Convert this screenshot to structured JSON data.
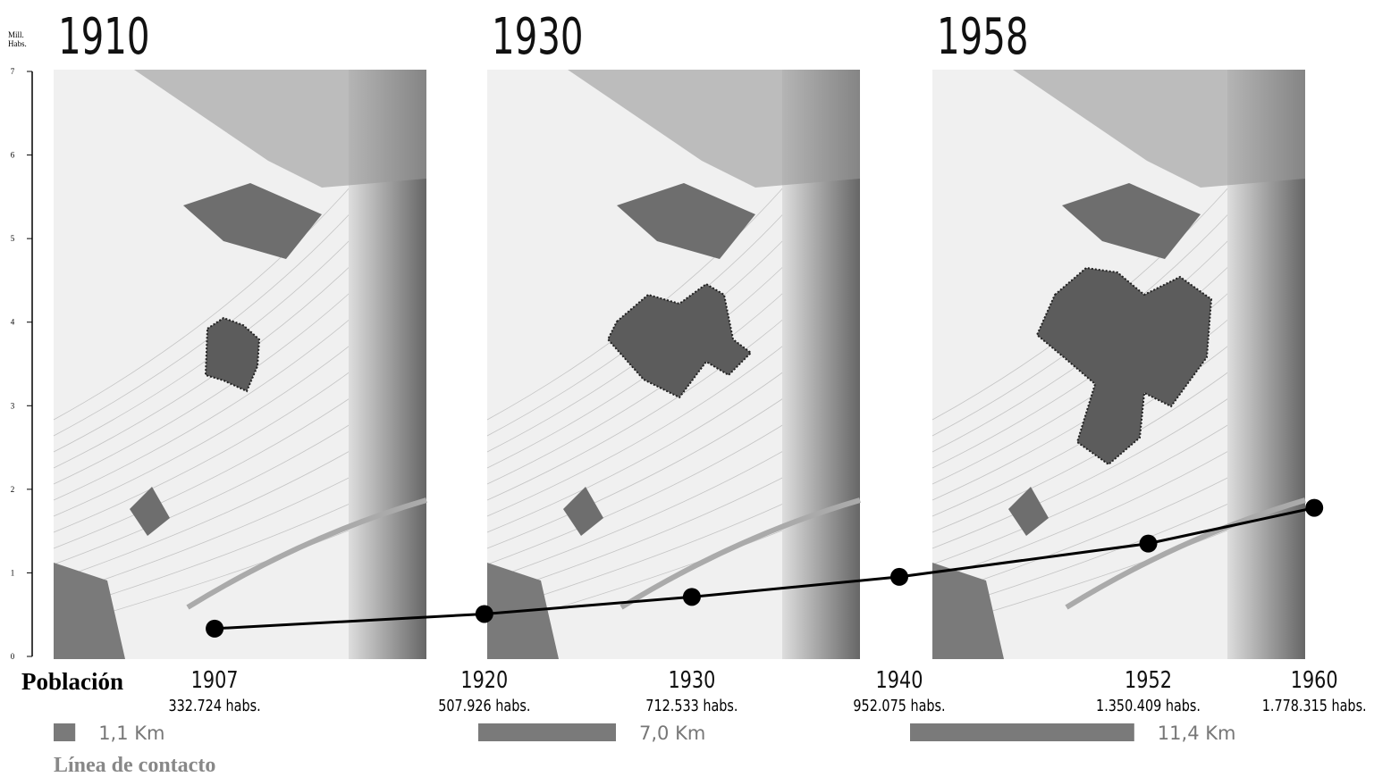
{
  "chart_data": {
    "type": "line",
    "y_label": "Mill. Habs.",
    "x_label": "Población",
    "x": [
      1907,
      1920,
      1930,
      1940,
      1952,
      1960
    ],
    "series": [
      {
        "name": "Población",
        "color": "#000000",
        "values": [
          0.332724,
          0.507926,
          0.712533,
          0.952075,
          1.350409,
          1.778315
        ],
        "value_labels": [
          "332.724 habs.",
          "507.926 habs.",
          "712.533 habs.",
          "952.075 habs.",
          "1.350.409 habs.",
          "1.778.315 habs."
        ]
      }
    ],
    "xlim": [
      1897,
      1961.5
    ],
    "xticks": [
      1907,
      1920,
      1930,
      1940,
      1952,
      1960
    ],
    "ylim": [
      0,
      7
    ],
    "yticks": [
      0,
      1,
      2,
      3,
      4,
      5,
      6,
      7
    ]
  },
  "maps": [
    "1910",
    "1930",
    "1958"
  ],
  "contact_line": {
    "title": "Línea de contacto",
    "color": "#7a7a7a",
    "values": [
      1.1,
      7.0,
      11.4
    ],
    "value_labels": [
      "1,1 Km",
      "7,0 Km",
      "11,4 Km"
    ]
  }
}
